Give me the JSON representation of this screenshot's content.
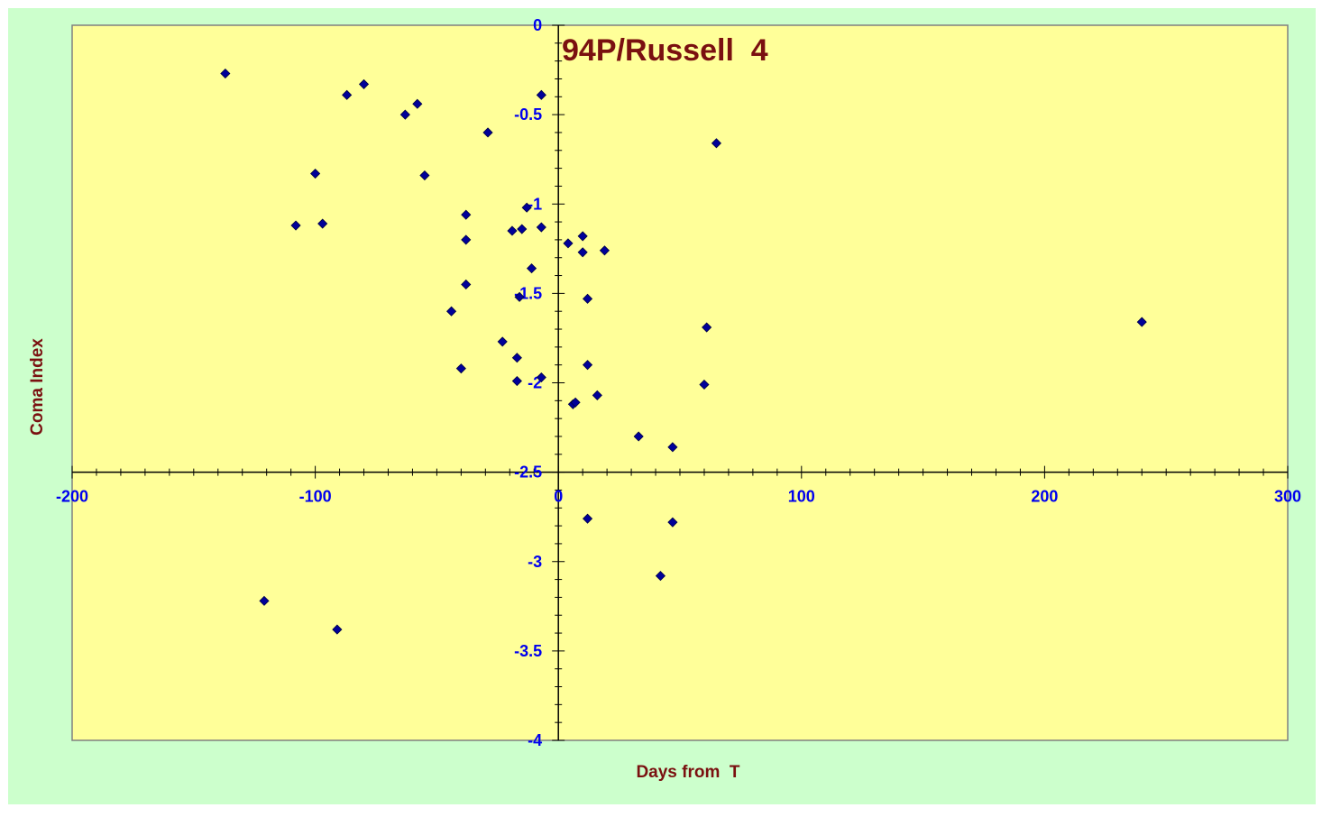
{
  "chart_data": {
    "type": "scatter",
    "title": "94P/Russell  4",
    "xlabel": "Days from  T",
    "ylabel": "Coma Index",
    "xlim": [
      -200,
      300
    ],
    "ylim": [
      -4,
      0
    ],
    "x_major_step": 100,
    "x_minor_step": 10,
    "y_major_step": 0.5,
    "y_minor_step": 0.1,
    "grid": false,
    "legend": "none",
    "x_tick_labels": [
      "-200",
      "-100",
      "0",
      "100",
      "200",
      "300"
    ],
    "y_tick_labels": [
      "0",
      "-0.5",
      "-1",
      "-1.5",
      "-2",
      "-2.5",
      "-3",
      "-3.5",
      "-4"
    ],
    "colors": {
      "outer_background": "#ccffcc",
      "plot_background": "#ffff99",
      "marker": "#000099",
      "tick_label": "#0000ee",
      "text": "#7a1010"
    },
    "series": [
      {
        "marker": "diamond",
        "points": [
          [
            -137,
            -0.27
          ],
          [
            -87,
            -0.39
          ],
          [
            -80,
            -0.33
          ],
          [
            -63,
            -0.5
          ],
          [
            -58,
            -0.44
          ],
          [
            -29,
            -0.6
          ],
          [
            -7,
            -0.39
          ],
          [
            65,
            -0.66
          ],
          [
            -100,
            -0.83
          ],
          [
            -55,
            -0.84
          ],
          [
            -108,
            -1.12
          ],
          [
            -97,
            -1.11
          ],
          [
            -38,
            -1.06
          ],
          [
            -13,
            -1.02
          ],
          [
            -19,
            -1.15
          ],
          [
            -15,
            -1.14
          ],
          [
            -7,
            -1.13
          ],
          [
            -38,
            -1.2
          ],
          [
            4,
            -1.22
          ],
          [
            10,
            -1.18
          ],
          [
            10,
            -1.27
          ],
          [
            19,
            -1.26
          ],
          [
            -11,
            -1.36
          ],
          [
            -38,
            -1.45
          ],
          [
            -16,
            -1.52
          ],
          [
            12,
            -1.53
          ],
          [
            -44,
            -1.6
          ],
          [
            61,
            -1.69
          ],
          [
            240,
            -1.66
          ],
          [
            -23,
            -1.77
          ],
          [
            -17,
            -1.86
          ],
          [
            -40,
            -1.92
          ],
          [
            12,
            -1.9
          ],
          [
            -17,
            -1.99
          ],
          [
            -7,
            -1.97
          ],
          [
            60,
            -2.01
          ],
          [
            16,
            -2.07
          ],
          [
            6,
            -2.12
          ],
          [
            7,
            -2.11
          ],
          [
            33,
            -2.3
          ],
          [
            47,
            -2.36
          ],
          [
            12,
            -2.76
          ],
          [
            47,
            -2.78
          ],
          [
            42,
            -3.08
          ],
          [
            -121,
            -3.22
          ],
          [
            -91,
            -3.38
          ]
        ]
      }
    ]
  }
}
